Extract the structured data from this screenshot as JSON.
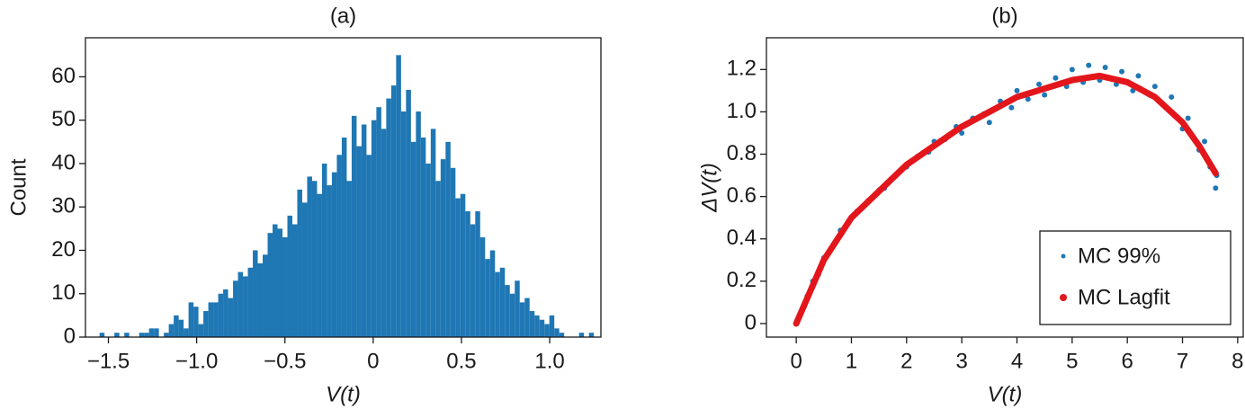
{
  "chart_data": [
    {
      "type": "histogram",
      "title": "(a)",
      "xlabel": "V(t)",
      "ylabel": "Count",
      "color": "#1f77b4",
      "bins": [
        -1.55,
        -1.522,
        -1.494,
        -1.466,
        -1.438,
        -1.41,
        -1.382,
        -1.354,
        -1.326,
        -1.298,
        -1.27,
        -1.242,
        -1.214,
        -1.186,
        -1.158,
        -1.13,
        -1.102,
        -1.074,
        -1.046,
        -1.018,
        -0.99,
        -0.962,
        -0.934,
        -0.906,
        -0.878,
        -0.85,
        -0.822,
        -0.794,
        -0.766,
        -0.738,
        -0.71,
        -0.682,
        -0.654,
        -0.626,
        -0.598,
        -0.57,
        -0.542,
        -0.514,
        -0.486,
        -0.458,
        -0.43,
        -0.402,
        -0.374,
        -0.346,
        -0.318,
        -0.29,
        -0.262,
        -0.234,
        -0.206,
        -0.178,
        -0.15,
        -0.122,
        -0.094,
        -0.066,
        -0.038,
        -0.01,
        0.018,
        0.046,
        0.074,
        0.102,
        0.13,
        0.158,
        0.186,
        0.214,
        0.242,
        0.27,
        0.298,
        0.326,
        0.354,
        0.382,
        0.41,
        0.438,
        0.466,
        0.494,
        0.522,
        0.55,
        0.578,
        0.606,
        0.634,
        0.662,
        0.69,
        0.718,
        0.746,
        0.774,
        0.802,
        0.83,
        0.858,
        0.886,
        0.914,
        0.942,
        0.97,
        0.998,
        1.026,
        1.054,
        1.082,
        1.11,
        1.138,
        1.166,
        1.194,
        1.222,
        1.25
      ],
      "values": [
        1,
        0,
        0,
        1,
        0,
        1,
        0,
        0,
        1,
        1,
        2,
        2,
        0,
        1,
        3,
        5,
        4,
        2,
        8,
        7,
        3,
        6,
        8,
        8,
        10,
        11,
        9,
        13,
        15,
        14,
        16,
        20,
        17,
        19,
        24,
        26,
        25,
        23,
        28,
        26,
        34,
        31,
        37,
        36,
        33,
        40,
        35,
        38,
        42,
        46,
        36,
        51,
        44,
        49,
        42,
        50,
        53,
        48,
        55,
        58,
        65,
        52,
        57,
        45,
        52,
        46,
        40,
        48,
        36,
        41,
        45,
        39,
        32,
        33,
        29,
        26,
        29,
        23,
        18,
        20,
        15,
        16,
        12,
        10,
        13,
        8,
        9,
        6,
        5,
        4,
        3,
        5,
        2,
        1,
        0,
        0,
        0,
        1,
        0,
        1
      ],
      "xlim": [
        -1.63,
        1.29
      ],
      "ylim": [
        0,
        69
      ],
      "xticks": [
        {
          "value": -1.5,
          "label": "−1.5"
        },
        {
          "value": -1.0,
          "label": "−1.0"
        },
        {
          "value": -0.5,
          "label": "−0.5"
        },
        0,
        0.5,
        {
          "value": 1.0,
          "label": "1.0"
        }
      ],
      "yticks": [
        0,
        10,
        20,
        30,
        40,
        50,
        60
      ]
    },
    {
      "type": "scatter",
      "title": "(b)",
      "xlabel": "V(t)",
      "ylabel": "ΔV(t)",
      "legend": "lower right",
      "xlim": [
        -0.54,
        8.1
      ],
      "ylim": [
        -0.064,
        1.35
      ],
      "xticks": [
        0,
        1,
        2,
        3,
        4,
        5,
        6,
        7,
        8
      ],
      "yticks": [
        0,
        0.2,
        0.4,
        0.6,
        0.8,
        {
          "value": 1.0,
          "label": "1.0"
        },
        1.2
      ],
      "series": [
        {
          "name": "MC 99%",
          "type": "scatter",
          "color": "#1f77b4",
          "x": [
            0.05,
            0.2,
            0.3,
            0.4,
            0.5,
            0.7,
            0.8,
            1.0,
            1.1,
            1.3,
            1.5,
            1.6,
            1.8,
            2.0,
            2.2,
            2.4,
            2.5,
            2.7,
            2.9,
            3.0,
            3.2,
            3.4,
            3.5,
            3.7,
            3.9,
            4.0,
            4.2,
            4.4,
            4.5,
            4.7,
            4.9,
            5.0,
            5.2,
            5.3,
            5.5,
            5.6,
            5.8,
            5.9,
            6.1,
            6.2,
            6.4,
            6.5,
            6.7,
            6.8,
            7.0,
            7.1,
            7.3,
            7.4,
            7.5,
            7.6,
            7.62
          ],
          "values": [
            0.03,
            0.13,
            0.2,
            0.23,
            0.31,
            0.38,
            0.44,
            0.5,
            0.53,
            0.58,
            0.63,
            0.64,
            0.7,
            0.74,
            0.79,
            0.81,
            0.86,
            0.87,
            0.93,
            0.9,
            0.97,
            0.99,
            0.95,
            1.05,
            1.02,
            1.1,
            1.06,
            1.13,
            1.08,
            1.16,
            1.12,
            1.2,
            1.14,
            1.22,
            1.15,
            1.21,
            1.13,
            1.19,
            1.1,
            1.17,
            1.08,
            1.12,
            1.02,
            1.07,
            0.92,
            0.97,
            0.82,
            0.86,
            0.74,
            0.64,
            0.7
          ]
        },
        {
          "name": "MC Lagfit",
          "type": "line",
          "color": "#e3161b",
          "x": [
            0,
            0.5,
            1,
            2,
            3,
            4,
            5,
            5.5,
            6,
            6.5,
            7,
            7.3,
            7.6
          ],
          "values": [
            0,
            0.3,
            0.5,
            0.75,
            0.93,
            1.07,
            1.15,
            1.17,
            1.14,
            1.07,
            0.95,
            0.84,
            0.71
          ]
        }
      ]
    }
  ]
}
